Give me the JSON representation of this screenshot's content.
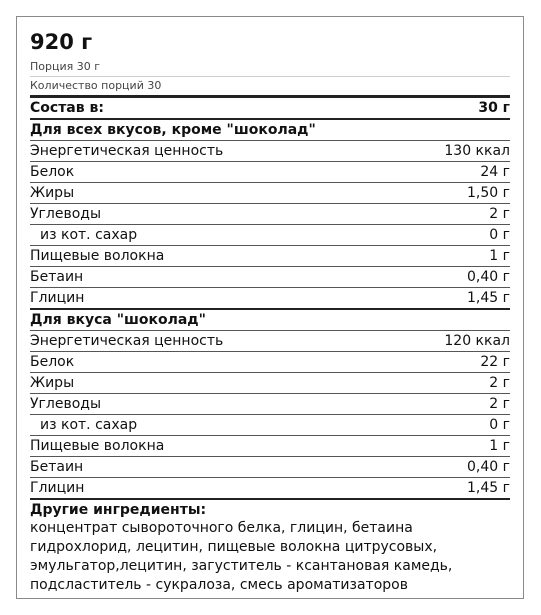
{
  "header": {
    "weight": "920 г",
    "serving": "Порция 30 г",
    "servings_count": "Количество порций 30"
  },
  "composition": {
    "label": "Состав в:",
    "value": "30 г"
  },
  "groups": [
    {
      "title": "Для всех вкусов, кроме \"шоколад\"",
      "rows": [
        {
          "label": "Энергетическая ценность",
          "value": "130 ккал"
        },
        {
          "label": "Белок",
          "value": "24 г"
        },
        {
          "label": "Жиры",
          "value": "1,50 г"
        },
        {
          "label": "Углеводы",
          "value": "2 г"
        },
        {
          "label": "из кот. сахар",
          "value": "0 г"
        },
        {
          "label": "Пищевые волокна",
          "value": "1 г"
        },
        {
          "label": "Бетаин",
          "value": "0,40 г"
        },
        {
          "label": "Глицин",
          "value": "1,45 г"
        }
      ]
    },
    {
      "title": "Для вкуса \"шоколад\"",
      "rows": [
        {
          "label": "Энергетическая ценность",
          "value": "120 ккал"
        },
        {
          "label": "Белок",
          "value": "22 г"
        },
        {
          "label": "Жиры",
          "value": "2 г"
        },
        {
          "label": "Углеводы",
          "value": "2 г"
        },
        {
          "label": "из кот. сахар",
          "value": "0 г"
        },
        {
          "label": "Пищевые волокна",
          "value": "1 г"
        },
        {
          "label": "Бетаин",
          "value": "0,40 г"
        },
        {
          "label": "Глицин",
          "value": "1,45 г"
        }
      ]
    }
  ],
  "other": {
    "title": "Другие ингредиенты:",
    "lines": [
      "концентрат сывороточного белка, глицин, бетаина",
      "гидрохлорид, лецитин, пищевые волокна цитрусовых,",
      "эмульгатор,лецитин, загуститель - ксантановая камедь,",
      "подсластитель - сукралоза, смесь ароматизаторов"
    ]
  }
}
